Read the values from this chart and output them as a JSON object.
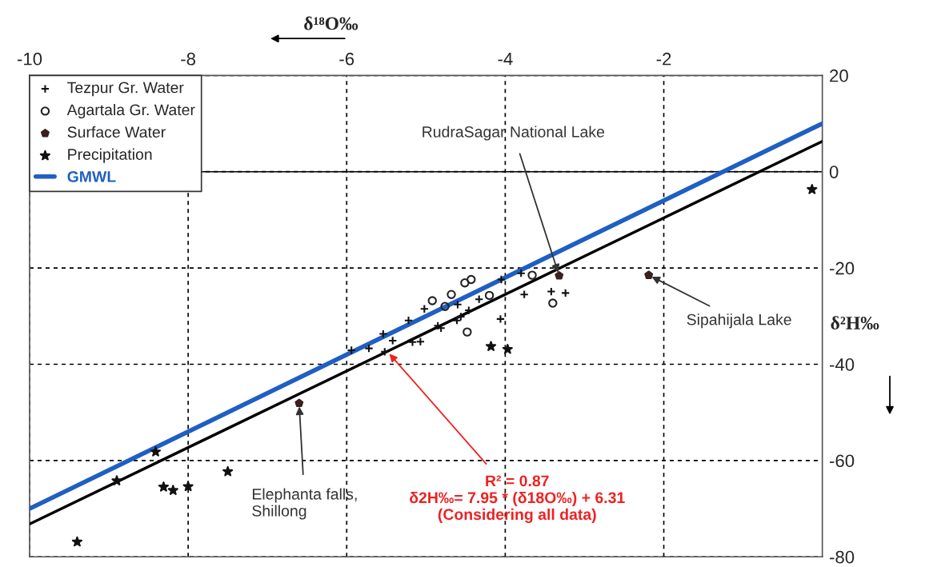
{
  "chart_data": {
    "type": "scatter",
    "xlabel": "δ¹⁸O‰",
    "ylabel": "δ²H‰",
    "xlim": [
      -10,
      0
    ],
    "ylim": [
      -80,
      20
    ],
    "xticks": [
      -10,
      -8,
      -6,
      -4,
      -2
    ],
    "yticks": [
      20,
      0,
      -20,
      -40,
      -60,
      -80
    ],
    "grid": true,
    "legend": "top left",
    "ref_lines": [
      {
        "axis": "y",
        "value": 0,
        "color": "#000000",
        "line_style": "solid"
      }
    ],
    "series": [
      {
        "name": "Tezpur Gr. Water",
        "marker": "cross",
        "color": "#111111",
        "x": [
          -5.94,
          -5.72,
          -5.54,
          -5.52,
          -5.42,
          -5.22,
          -5.17,
          -5.07,
          -5.02,
          -4.85,
          -4.81,
          -4.6,
          -4.56,
          -4.61,
          -4.33,
          -4.46,
          -4.05,
          -4.06,
          -3.8,
          -3.76,
          -3.42,
          -3.24
        ],
        "values": [
          -37.1,
          -36.7,
          -33.7,
          -37.4,
          -35.1,
          -30.9,
          -35.4,
          -35.3,
          -28.5,
          -32.0,
          -32.5,
          -27.6,
          -30.1,
          -30.9,
          -26.5,
          -28.8,
          -22.4,
          -30.6,
          -21.1,
          -25.5,
          -24.9,
          -25.2
        ]
      },
      {
        "name": "Agartala Gr. Water",
        "marker": "circle",
        "color": "#222222",
        "x": [
          -4.92,
          -4.76,
          -4.68,
          -4.51,
          -4.43,
          -4.48,
          -4.2,
          -3.66,
          -3.4
        ],
        "values": [
          -26.8,
          -28.0,
          -25.5,
          -23.1,
          -22.4,
          -33.3,
          -25.7,
          -21.5,
          -27.3
        ]
      },
      {
        "name": "Surface Water",
        "marker": "square",
        "color": "#3a2020",
        "x": [
          -3.32,
          -2.19,
          -6.6
        ],
        "values": [
          -21.6,
          -21.5,
          -48.1
        ]
      },
      {
        "name": "Precipitation",
        "marker": "star",
        "color": "#111111",
        "x": [
          -0.13,
          -8.41,
          -8.9,
          -8.31,
          -8.19,
          -8.0,
          -7.5,
          -9.4,
          -4.18,
          -3.97
        ],
        "values": [
          -3.7,
          -58.2,
          -64.2,
          -65.5,
          -66.2,
          -65.4,
          -62.3,
          -76.9,
          -36.3,
          -36.9
        ]
      },
      {
        "name": "GMWL",
        "type": "line",
        "marker": "none",
        "line_style": "solid",
        "color": "#1f5fc4",
        "x": [
          -10,
          0
        ],
        "values": [
          -70,
          10
        ]
      },
      {
        "type": "line",
        "marker": "none",
        "line_style": "solid",
        "color": "#000000",
        "x": [
          -10,
          0
        ],
        "values": [
          -73.2,
          6.3
        ]
      }
    ],
    "annotations": [
      {
        "text": "RudraSagar National Lake",
        "x": -3.32,
        "y": -21.6
      },
      {
        "text": "Sipahijala Lake",
        "x": -2.19,
        "y": -21.5
      },
      {
        "text": "Elephanta falls,\nShillong",
        "x": -6.6,
        "y": -48.1
      },
      {
        "text": "R² = 0.87\nδ2H‰= 7.95 * (δ18O‰) + 6.31\n(Considering all data)",
        "x": -5.49,
        "y": -37.3
      }
    ]
  }
}
